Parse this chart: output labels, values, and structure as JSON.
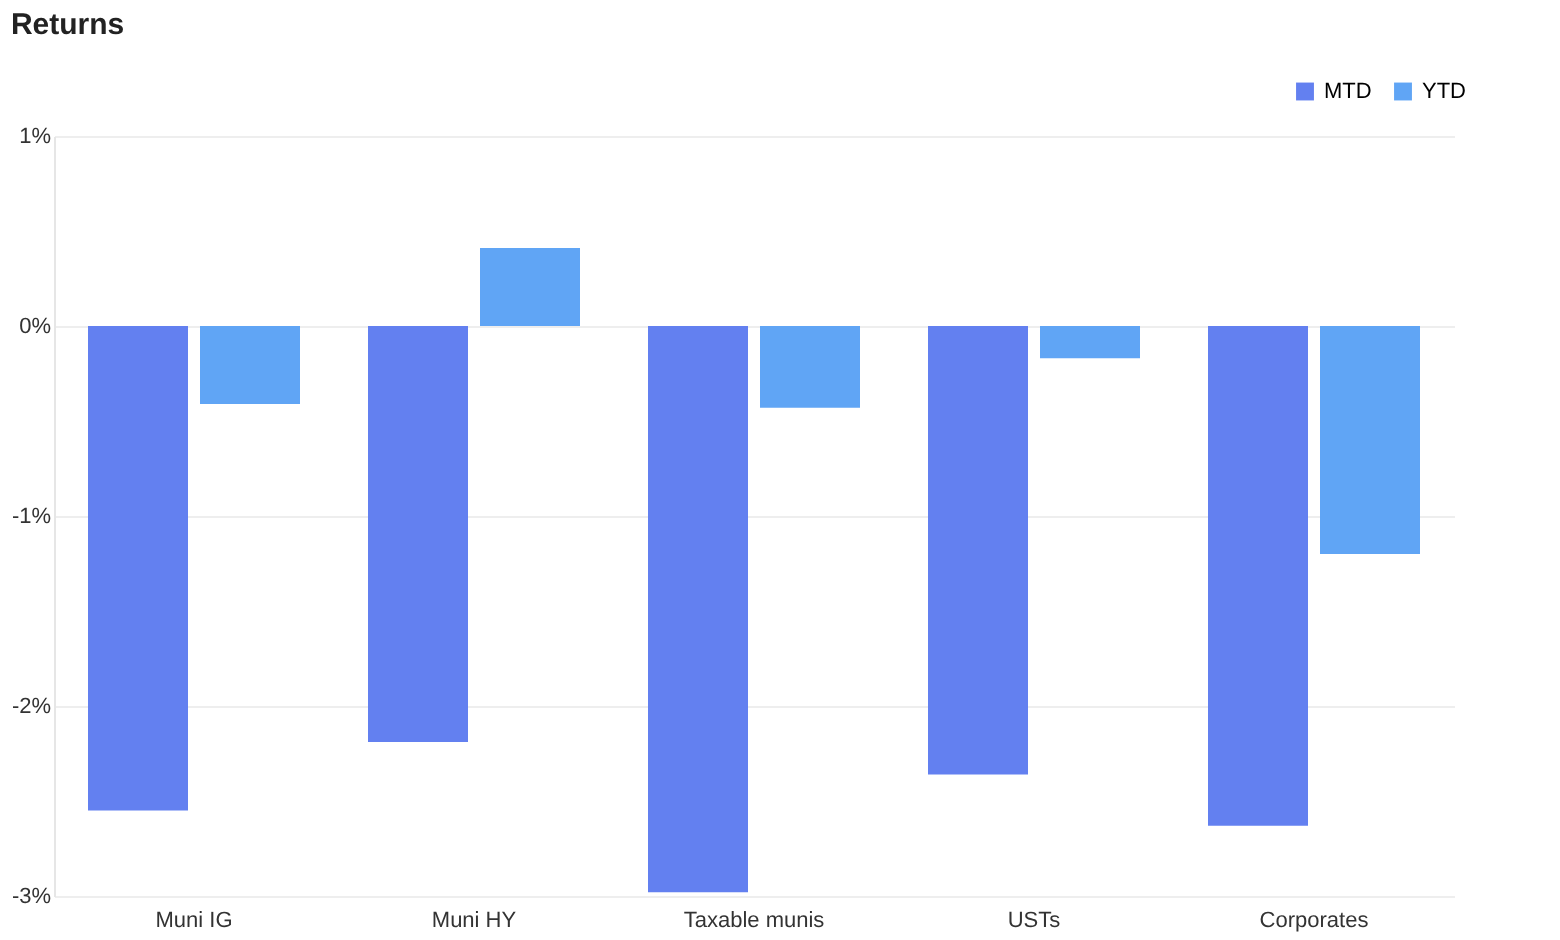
{
  "chart_data": {
    "type": "bar",
    "title": "Returns",
    "categories": [
      "Muni IG",
      "Muni HY",
      "Taxable munis",
      "USTs",
      "Corporates"
    ],
    "series": [
      {
        "name": "MTD",
        "color": "#6380f0",
        "values": [
          -2.55,
          -2.19,
          -2.98,
          -2.36,
          -2.63
        ]
      },
      {
        "name": "YTD",
        "color": "#60a5f5",
        "values": [
          -0.41,
          0.41,
          -0.43,
          -0.17,
          -1.2
        ]
      }
    ],
    "ylim": [
      -3,
      1
    ],
    "yticks": [
      {
        "value": -3,
        "label": "-3%"
      },
      {
        "value": -2,
        "label": "-2%"
      },
      {
        "value": -1,
        "label": "-1%"
      },
      {
        "value": 0,
        "label": "0%"
      },
      {
        "value": 1,
        "label": "1%"
      }
    ],
    "grid": "y",
    "legend": "top right"
  }
}
